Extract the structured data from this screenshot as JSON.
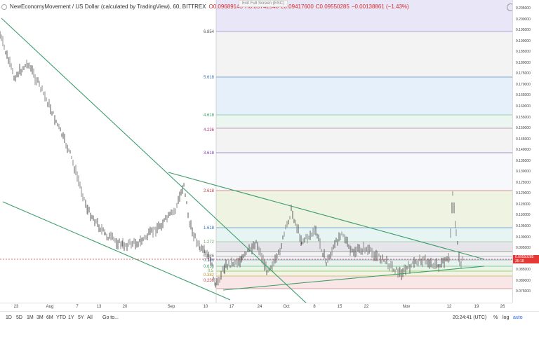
{
  "legend": {
    "symbol": "NewEconomyMovement / US Dollar (calculated by TradingView), 60, BITTREX",
    "open": "O0.09689145",
    "high": "H0.09742540",
    "low": "L0.09417600",
    "close": "C0.09550285",
    "change": "−0.00138861 (−1.43%)"
  },
  "exit_fullscreen": "Exit Full Screen (ESC)",
  "price_axis": {
    "ticks": [
      "0.205000",
      "0.200000",
      "0.195000",
      "0.190000",
      "0.185000",
      "0.180000",
      "0.175000",
      "0.170000",
      "0.165000",
      "0.160000",
      "0.155000",
      "0.150000",
      "0.145000",
      "0.140000",
      "0.135000",
      "0.130000",
      "0.125000",
      "0.120000",
      "0.115000",
      "0.110000",
      "0.105000",
      "0.100000",
      "0.095000",
      "0.090000",
      "0.085000",
      "0.080000",
      "0.075000"
    ],
    "last_price": "0.09550285",
    "last_time": "35:18"
  },
  "time_axis": {
    "ticks": [
      "23",
      "Aug",
      "7",
      "13",
      "20",
      "Sep",
      "10",
      "17",
      "24",
      "Oct",
      "8",
      "15",
      "22",
      "Nov",
      "12",
      "19",
      "26"
    ]
  },
  "fib_levels": [
    "6.854",
    "5.618",
    "4.618",
    "4.236",
    "3.618",
    "2.618",
    "1.618",
    "1.272",
    "1",
    "0.886",
    "0.786",
    "0.618",
    "0.5",
    "0.382",
    "0.236"
  ],
  "toolbar": {
    "timeframes": [
      "1D",
      "5D",
      "1M",
      "3M",
      "6M",
      "YTD",
      "1Y",
      "5Y",
      "All"
    ],
    "goto": "Go to...",
    "clock": "20:24:41 (UTC)",
    "percent": "%",
    "log": "log",
    "auto": "auto"
  },
  "colors": {
    "accent": "#2962ff",
    "last_price": "#e53935",
    "trendline": "#3c9e6a"
  }
}
